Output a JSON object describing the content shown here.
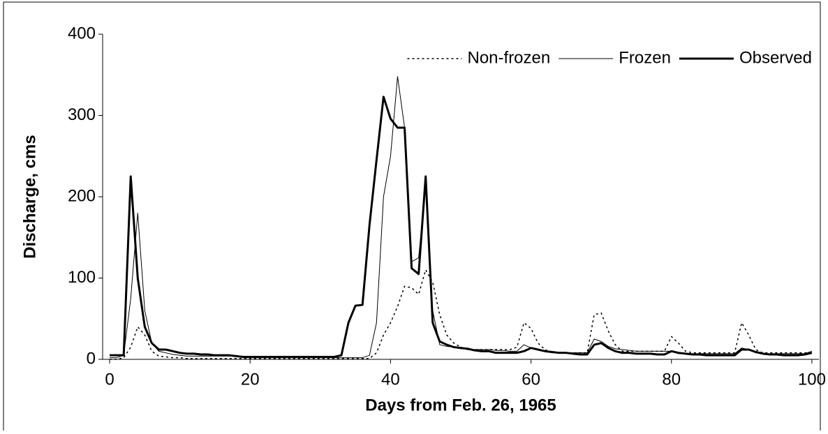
{
  "chart_data": {
    "type": "line",
    "xlabel": "Days from Feb. 26, 1965",
    "ylabel": "Discharge, cms",
    "x": [
      0,
      1,
      2,
      3,
      4,
      5,
      6,
      7,
      8,
      9,
      10,
      11,
      12,
      13,
      14,
      15,
      16,
      17,
      18,
      19,
      20,
      21,
      22,
      23,
      24,
      25,
      26,
      27,
      28,
      29,
      30,
      31,
      32,
      33,
      34,
      35,
      36,
      37,
      38,
      39,
      40,
      41,
      42,
      43,
      44,
      45,
      46,
      47,
      48,
      49,
      50,
      51,
      52,
      53,
      54,
      55,
      56,
      57,
      58,
      59,
      60,
      61,
      62,
      63,
      64,
      65,
      66,
      67,
      68,
      69,
      70,
      71,
      72,
      73,
      74,
      75,
      76,
      77,
      78,
      79,
      80,
      81,
      82,
      83,
      84,
      85,
      86,
      87,
      88,
      89,
      90,
      91,
      92,
      93,
      94,
      95,
      96,
      97,
      98,
      99,
      100
    ],
    "series": [
      {
        "name": "Non-frozen",
        "color": "#000000",
        "line_style": "dotted",
        "line_width": 1.5,
        "values": [
          0,
          0,
          2,
          15,
          40,
          30,
          10,
          4,
          3,
          2,
          2,
          1,
          1,
          1,
          1,
          1,
          1,
          1,
          1,
          1,
          1,
          1,
          1,
          1,
          1,
          1,
          1,
          1,
          1,
          1,
          1,
          1,
          1,
          1,
          1,
          1,
          1,
          1,
          8,
          30,
          45,
          65,
          90,
          88,
          80,
          110,
          95,
          55,
          30,
          20,
          15,
          12,
          12,
          12,
          12,
          12,
          12,
          12,
          15,
          45,
          38,
          20,
          12,
          8,
          8,
          8,
          8,
          8,
          8,
          55,
          57,
          35,
          18,
          10,
          10,
          10,
          10,
          10,
          10,
          10,
          28,
          20,
          10,
          8,
          8,
          8,
          8,
          8,
          8,
          8,
          45,
          30,
          12,
          8,
          8,
          8,
          8,
          8,
          8,
          8,
          8
        ]
      },
      {
        "name": "Frozen",
        "color": "#000000",
        "line_style": "solid",
        "line_width": 1,
        "values": [
          2,
          2,
          5,
          75,
          180,
          60,
          20,
          10,
          8,
          6,
          5,
          4,
          4,
          4,
          4,
          4,
          4,
          4,
          4,
          2,
          2,
          2,
          2,
          2,
          2,
          2,
          2,
          2,
          2,
          2,
          2,
          2,
          2,
          2,
          2,
          2,
          2,
          5,
          45,
          200,
          250,
          348,
          285,
          120,
          125,
          215,
          60,
          18,
          16,
          15,
          13,
          13,
          12,
          12,
          12,
          11,
          11,
          10,
          10,
          18,
          14,
          12,
          10,
          8,
          8,
          8,
          8,
          8,
          8,
          25,
          22,
          16,
          13,
          12,
          11,
          10,
          10,
          10,
          10,
          10,
          10,
          7,
          7,
          7,
          7,
          7,
          7,
          7,
          7,
          7,
          14,
          12,
          8,
          7,
          7,
          7,
          7,
          7,
          7,
          7,
          10
        ]
      },
      {
        "name": "Observed",
        "color": "#000000",
        "line_style": "solid",
        "line_width": 3,
        "values": [
          5,
          5,
          5,
          225,
          100,
          40,
          20,
          12,
          12,
          10,
          8,
          7,
          7,
          6,
          6,
          5,
          5,
          5,
          4,
          3,
          3,
          3,
          3,
          3,
          3,
          3,
          3,
          3,
          3,
          3,
          3,
          3,
          3,
          5,
          45,
          66,
          67,
          165,
          245,
          323,
          296,
          285,
          285,
          112,
          105,
          225,
          45,
          22,
          18,
          15,
          14,
          13,
          11,
          10,
          10,
          8,
          8,
          8,
          8,
          10,
          14,
          12,
          10,
          9,
          8,
          8,
          7,
          6,
          6,
          18,
          20,
          14,
          10,
          8,
          8,
          7,
          7,
          7,
          6,
          6,
          10,
          8,
          7,
          6,
          6,
          5,
          5,
          5,
          5,
          5,
          12,
          12,
          9,
          7,
          6,
          6,
          5,
          5,
          5,
          6,
          8
        ]
      }
    ],
    "xlim": [
      -1,
      101
    ],
    "xticks": [
      0,
      20,
      40,
      60,
      80,
      100
    ],
    "ylim": [
      0,
      400
    ],
    "yticks": [
      0,
      100,
      200,
      300,
      400
    ],
    "grid": false,
    "legend": "top-right"
  }
}
